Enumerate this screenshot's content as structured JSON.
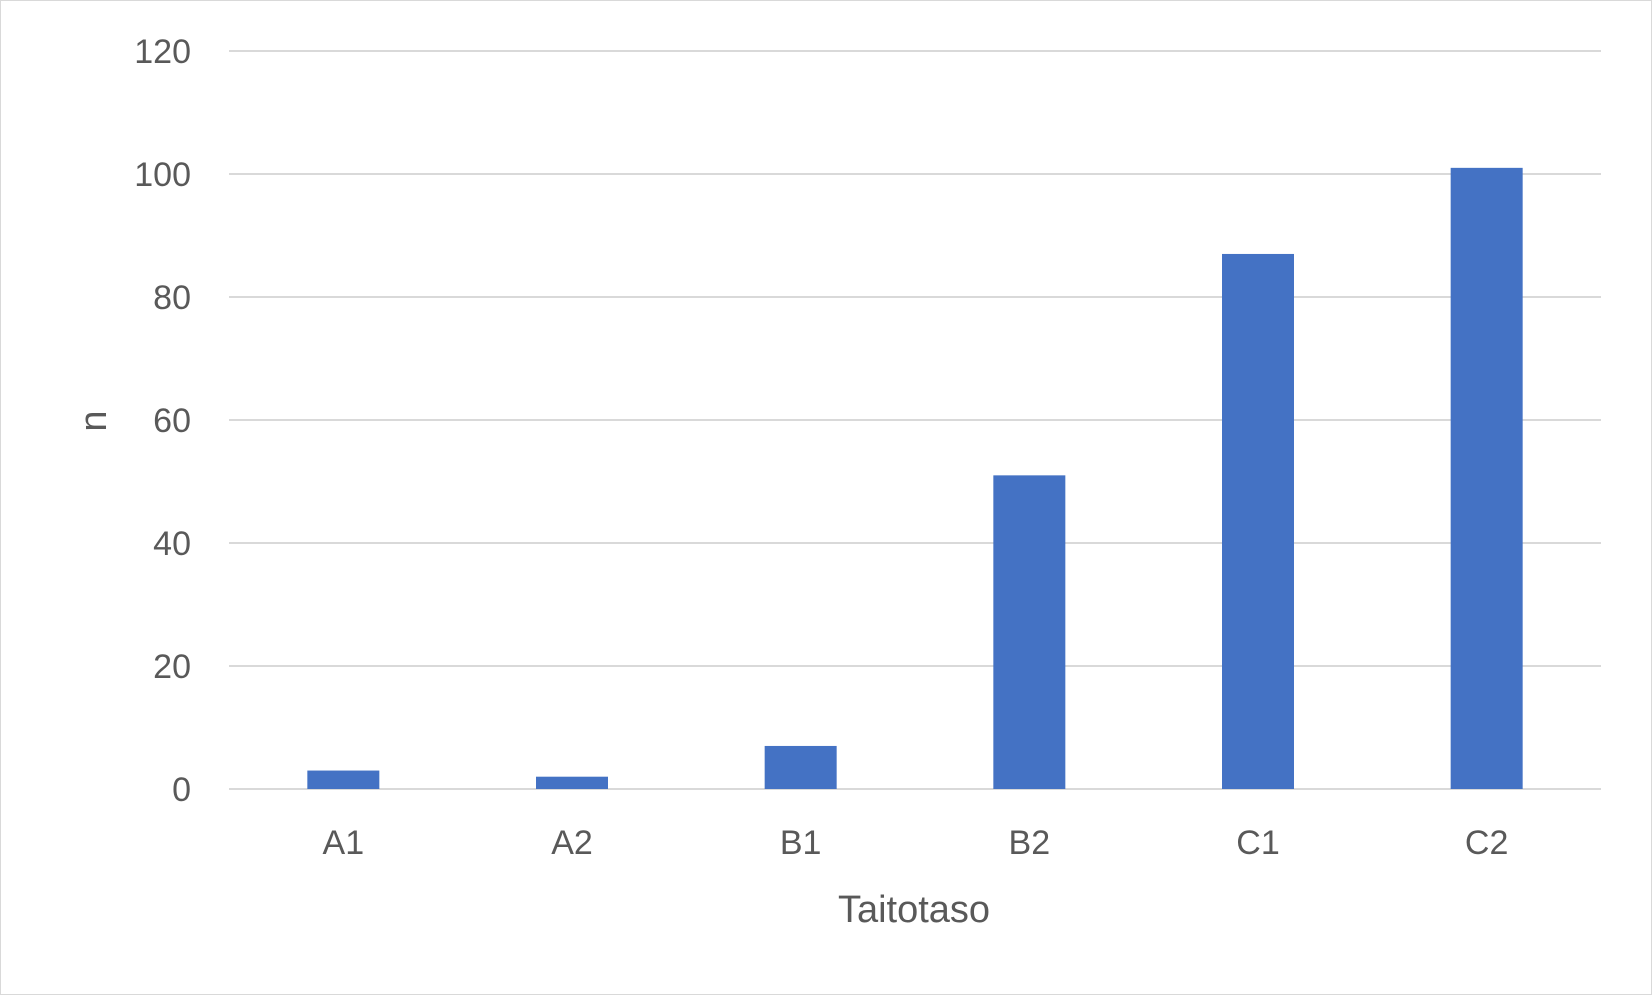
{
  "chart_data": {
    "type": "bar",
    "title": "",
    "xlabel": "Taitotaso",
    "ylabel": "n",
    "categories": [
      "A1",
      "A2",
      "B1",
      "B2",
      "C1",
      "C2"
    ],
    "values": [
      3,
      2,
      7,
      51,
      87,
      101
    ],
    "ylim": [
      0,
      120
    ],
    "yticks": [
      0,
      20,
      40,
      60,
      80,
      100,
      120
    ],
    "grid": true,
    "legend": "none",
    "bar_color": "#4472C4",
    "grid_color": "#d9d9d9",
    "text_color": "#595959"
  }
}
